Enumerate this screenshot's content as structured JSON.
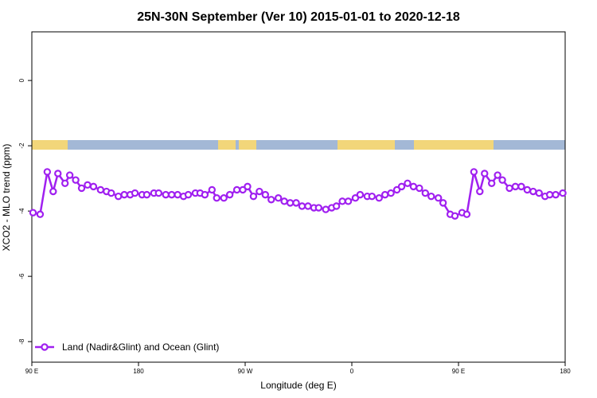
{
  "chart_data": {
    "type": "line",
    "title": "25N-30N September (Ver 10)   2015-01-01 to 2020-12-18",
    "x_label": "Longitude (deg E)",
    "y_label": "XCO2 - MLO trend (ppm)",
    "xlim": [
      90,
      540
    ],
    "ylim": [
      -8.63,
      1.49
    ],
    "xticks": [
      {
        "value": 90,
        "label": "90 E"
      },
      180,
      {
        "value": 270,
        "label": "90 W"
      },
      {
        "value": 360,
        "label": "0"
      },
      {
        "value": 450,
        "label": "90 E"
      },
      {
        "value": 540,
        "label": "180"
      }
    ],
    "yticks": [
      0,
      -2,
      -4,
      -6,
      -8
    ],
    "legend": "bottom-left",
    "x": [
      91,
      97,
      103,
      108,
      112,
      118,
      122,
      127,
      132,
      137,
      142,
      148,
      153,
      157,
      163,
      168,
      173,
      177,
      183,
      187,
      193,
      197,
      203,
      208,
      213,
      218,
      222,
      228,
      232,
      236,
      242,
      246,
      252,
      257,
      263,
      268,
      272,
      277,
      282,
      287,
      292,
      298,
      303,
      308,
      313,
      318,
      323,
      328,
      332,
      338,
      343,
      347,
      352,
      357,
      363,
      367,
      373,
      377,
      383,
      388,
      393,
      398,
      402,
      407,
      412,
      417,
      422,
      427,
      433,
      437,
      443,
      447,
      453,
      457,
      463,
      468,
      472,
      478,
      483,
      487,
      493,
      498,
      503,
      508,
      513,
      518,
      523,
      527,
      532,
      538
    ],
    "series": [
      {
        "name": "Land (Nadir&Glint) and Ocean (Glint)",
        "color": "#a020f0",
        "values": [
          -4.05,
          -4.1,
          -2.8,
          -3.4,
          -2.85,
          -3.15,
          -2.9,
          -3.05,
          -3.3,
          -3.2,
          -3.25,
          -3.35,
          -3.4,
          -3.45,
          -3.55,
          -3.5,
          -3.5,
          -3.45,
          -3.5,
          -3.5,
          -3.45,
          -3.45,
          -3.5,
          -3.5,
          -3.5,
          -3.55,
          -3.5,
          -3.45,
          -3.45,
          -3.5,
          -3.35,
          -3.6,
          -3.6,
          -3.5,
          -3.35,
          -3.35,
          -3.25,
          -3.55,
          -3.4,
          -3.5,
          -3.65,
          -3.6,
          -3.7,
          -3.75,
          -3.75,
          -3.85,
          -3.85,
          -3.9,
          -3.9,
          -3.95,
          -3.9,
          -3.85,
          -3.7,
          -3.7,
          -3.6,
          -3.5,
          -3.55,
          -3.55,
          -3.6,
          -3.5,
          -3.45,
          -3.35,
          -3.25,
          -3.15,
          -3.25,
          -3.3,
          -3.45,
          -3.55,
          -3.6,
          -3.75,
          -4.1,
          -4.15,
          -4.05,
          -4.1,
          -2.8,
          -3.4,
          -2.85,
          -3.15,
          -2.9,
          -3.05,
          -3.3,
          -3.25,
          -3.25,
          -3.35,
          -3.4,
          -3.45,
          -3.55,
          -3.5,
          -3.5,
          -3.45
        ]
      }
    ]
  }
}
